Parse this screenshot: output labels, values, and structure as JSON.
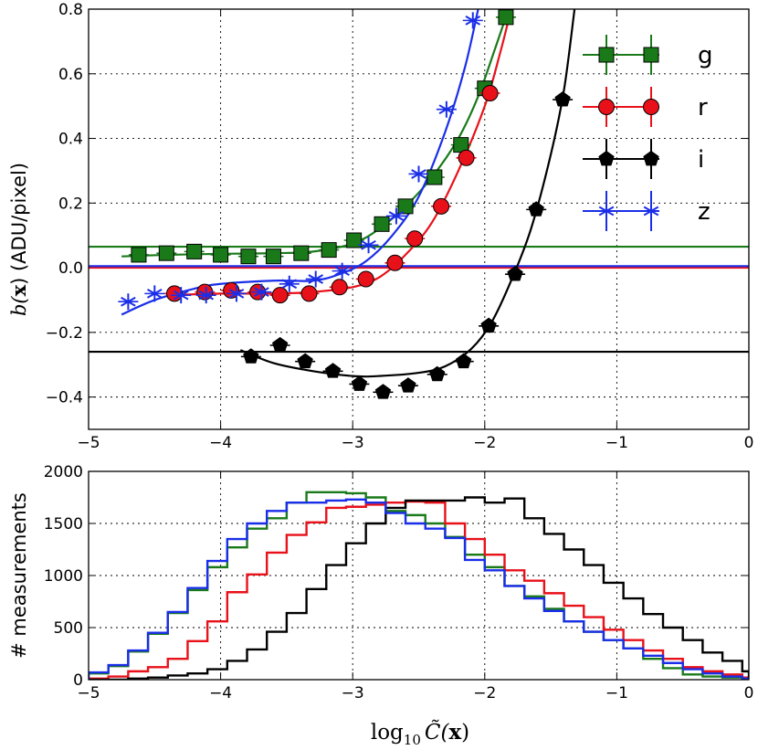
{
  "chart_data": [
    {
      "type": "scatter",
      "title": "",
      "xlabel": "log10 C~(x)",
      "xlabel_main": "log",
      "xlabel_sub": "10",
      "xlabel_var": "C̃(",
      "xlabel_bold": "x",
      "xlabel_close": ")",
      "ylabel": "b(x) (ADU/pixel)",
      "ylabel_b": "b(",
      "ylabel_x": "x",
      "ylabel_rest": ") (ADU/pixel)",
      "xlim": [
        -5,
        0
      ],
      "ylim": [
        -0.5,
        0.8
      ],
      "xticks": [
        -5,
        -4,
        -3,
        -2,
        -1,
        0
      ],
      "xtick_labels": [
        "−5",
        "−4",
        "−3",
        "−2",
        "−1",
        "0"
      ],
      "yticks": [
        -0.4,
        -0.2,
        0.0,
        0.2,
        0.4,
        0.6,
        0.8
      ],
      "ytick_labels": [
        "−0.4",
        "−0.2",
        "0.0",
        "0.2",
        "0.4",
        "0.6",
        "0.8"
      ],
      "grid": true,
      "legend_position": "top-right",
      "series": [
        {
          "name": "g",
          "color": "#1a7a1a",
          "marker": "square",
          "points": [
            [
              -4.62,
              0.04
            ],
            [
              -4.41,
              0.045
            ],
            [
              -4.2,
              0.05
            ],
            [
              -4.0,
              0.04
            ],
            [
              -3.79,
              0.035
            ],
            [
              -3.6,
              0.035
            ],
            [
              -3.39,
              0.045
            ],
            [
              -3.18,
              0.055
            ],
            [
              -2.99,
              0.085
            ],
            [
              -2.78,
              0.135
            ],
            [
              -2.6,
              0.19
            ],
            [
              -2.38,
              0.28
            ],
            [
              -2.18,
              0.38
            ],
            [
              -2.0,
              0.555
            ],
            [
              -1.84,
              0.775
            ]
          ],
          "constant": 0.065,
          "curve": [
            [
              -4.75,
              0.035
            ],
            [
              -4.4,
              0.04
            ],
            [
              -4.0,
              0.043
            ],
            [
              -3.6,
              0.045
            ],
            [
              -3.3,
              0.05
            ],
            [
              -3.0,
              0.075
            ],
            [
              -2.8,
              0.12
            ],
            [
              -2.6,
              0.19
            ],
            [
              -2.4,
              0.28
            ],
            [
              -2.2,
              0.4
            ],
            [
              -2.05,
              0.53
            ],
            [
              -1.92,
              0.68
            ],
            [
              -1.82,
              0.8
            ]
          ]
        },
        {
          "name": "r",
          "color": "#e8111a",
          "marker": "circle",
          "points": [
            [
              -4.35,
              -0.08
            ],
            [
              -4.12,
              -0.075
            ],
            [
              -3.92,
              -0.07
            ],
            [
              -3.72,
              -0.075
            ],
            [
              -3.55,
              -0.085
            ],
            [
              -3.33,
              -0.08
            ],
            [
              -3.1,
              -0.06
            ],
            [
              -2.9,
              -0.035
            ],
            [
              -2.68,
              0.015
            ],
            [
              -2.53,
              0.09
            ],
            [
              -2.33,
              0.19
            ],
            [
              -2.14,
              0.34
            ],
            [
              -1.96,
              0.54
            ]
          ],
          "constant": 0.0,
          "curve": [
            [
              -4.4,
              -0.085
            ],
            [
              -4.0,
              -0.08
            ],
            [
              -3.6,
              -0.08
            ],
            [
              -3.3,
              -0.075
            ],
            [
              -3.0,
              -0.06
            ],
            [
              -2.8,
              -0.03
            ],
            [
              -2.6,
              0.04
            ],
            [
              -2.4,
              0.14
            ],
            [
              -2.2,
              0.3
            ],
            [
              -2.0,
              0.5
            ],
            [
              -1.88,
              0.67
            ],
            [
              -1.8,
              0.8
            ]
          ]
        },
        {
          "name": "i",
          "color": "#000000",
          "marker": "pentagon",
          "points": [
            [
              -3.77,
              -0.275
            ],
            [
              -3.55,
              -0.24
            ],
            [
              -3.36,
              -0.29
            ],
            [
              -3.15,
              -0.32
            ],
            [
              -2.95,
              -0.36
            ],
            [
              -2.77,
              -0.385
            ],
            [
              -2.58,
              -0.365
            ],
            [
              -2.36,
              -0.33
            ],
            [
              -2.16,
              -0.29
            ],
            [
              -1.97,
              -0.18
            ],
            [
              -1.77,
              -0.02
            ],
            [
              -1.61,
              0.18
            ],
            [
              -1.41,
              0.52
            ]
          ],
          "constant": -0.26,
          "curve": [
            [
              -3.85,
              -0.255
            ],
            [
              -3.6,
              -0.295
            ],
            [
              -3.3,
              -0.32
            ],
            [
              -3.0,
              -0.335
            ],
            [
              -2.8,
              -0.335
            ],
            [
              -2.5,
              -0.325
            ],
            [
              -2.3,
              -0.305
            ],
            [
              -2.1,
              -0.25
            ],
            [
              -1.95,
              -0.17
            ],
            [
              -1.8,
              -0.04
            ],
            [
              -1.65,
              0.12
            ],
            [
              -1.5,
              0.35
            ],
            [
              -1.4,
              0.55
            ],
            [
              -1.32,
              0.8
            ]
          ]
        },
        {
          "name": "z",
          "color": "#1a2ee8",
          "marker": "star",
          "points": [
            [
              -4.7,
              -0.105
            ],
            [
              -4.5,
              -0.08
            ],
            [
              -4.3,
              -0.085
            ],
            [
              -4.11,
              -0.085
            ],
            [
              -3.88,
              -0.08
            ],
            [
              -3.69,
              -0.075
            ],
            [
              -3.48,
              -0.05
            ],
            [
              -3.28,
              -0.035
            ],
            [
              -3.08,
              -0.01
            ],
            [
              -2.88,
              0.07
            ],
            [
              -2.67,
              0.16
            ],
            [
              -2.5,
              0.29
            ],
            [
              -2.29,
              0.49
            ],
            [
              -2.09,
              0.765
            ]
          ],
          "constant": 0.005,
          "curve": [
            [
              -4.75,
              -0.145
            ],
            [
              -4.5,
              -0.1
            ],
            [
              -4.2,
              -0.065
            ],
            [
              -4.0,
              -0.05
            ],
            [
              -3.6,
              -0.04
            ],
            [
              -3.3,
              -0.04
            ],
            [
              -3.1,
              -0.02
            ],
            [
              -2.9,
              0.02
            ],
            [
              -2.7,
              0.1
            ],
            [
              -2.5,
              0.22
            ],
            [
              -2.3,
              0.42
            ],
            [
              -2.15,
              0.62
            ],
            [
              -2.05,
              0.8
            ]
          ]
        }
      ]
    },
    {
      "type": "histogram",
      "title": "",
      "xlabel": "log10 C~(x)",
      "ylabel": "# measurements",
      "xlim": [
        -5,
        0
      ],
      "ylim": [
        0,
        2000
      ],
      "xticks": [
        -5,
        -4,
        -3,
        -2,
        -1,
        0
      ],
      "xtick_labels": [
        "−5",
        "−4",
        "−3",
        "−2",
        "−1",
        "0"
      ],
      "yticks": [
        0,
        500,
        1000,
        1500,
        2000
      ],
      "ytick_labels": [
        "0",
        "500",
        "1000",
        "1500",
        "2000"
      ],
      "grid": true,
      "bin_edges": [
        -5.0,
        -4.85,
        -4.7,
        -4.55,
        -4.4,
        -4.25,
        -4.1,
        -3.95,
        -3.8,
        -3.65,
        -3.5,
        -3.35,
        -3.2,
        -3.05,
        -2.9,
        -2.75,
        -2.6,
        -2.45,
        -2.3,
        -2.15,
        -2.0,
        -1.85,
        -1.7,
        -1.55,
        -1.4,
        -1.25,
        -1.1,
        -0.95,
        -0.8,
        -0.65,
        -0.5,
        -0.35,
        -0.2,
        -0.05,
        0.0
      ],
      "series": [
        {
          "name": "g",
          "color": "#1a7a1a",
          "counts": [
            60,
            130,
            270,
            440,
            640,
            860,
            1080,
            1270,
            1450,
            1550,
            1700,
            1800,
            1800,
            1790,
            1750,
            1620,
            1580,
            1500,
            1370,
            1200,
            1080,
            900,
            800,
            680,
            560,
            460,
            380,
            300,
            200,
            110,
            50,
            30,
            20,
            10
          ]
        },
        {
          "name": "r",
          "color": "#e8111a",
          "counts": [
            10,
            30,
            80,
            120,
            200,
            370,
            560,
            840,
            1010,
            1220,
            1390,
            1510,
            1650,
            1660,
            1680,
            1700,
            1710,
            1700,
            1500,
            1350,
            1200,
            1050,
            950,
            830,
            710,
            600,
            480,
            380,
            280,
            200,
            120,
            80,
            50,
            20
          ]
        },
        {
          "name": "i",
          "color": "#000000",
          "counts": [
            0,
            0,
            10,
            20,
            40,
            60,
            100,
            180,
            290,
            460,
            640,
            870,
            1100,
            1310,
            1500,
            1650,
            1720,
            1720,
            1720,
            1750,
            1700,
            1740,
            1550,
            1400,
            1250,
            1100,
            930,
            780,
            630,
            500,
            380,
            260,
            180,
            80
          ]
        },
        {
          "name": "z",
          "color": "#1a2ee8",
          "counts": [
            70,
            140,
            280,
            450,
            650,
            880,
            1140,
            1350,
            1500,
            1620,
            1700,
            1700,
            1720,
            1730,
            1700,
            1600,
            1500,
            1450,
            1360,
            1150,
            1050,
            900,
            780,
            660,
            560,
            460,
            380,
            300,
            230,
            160,
            100,
            60,
            30,
            10
          ]
        }
      ]
    }
  ]
}
